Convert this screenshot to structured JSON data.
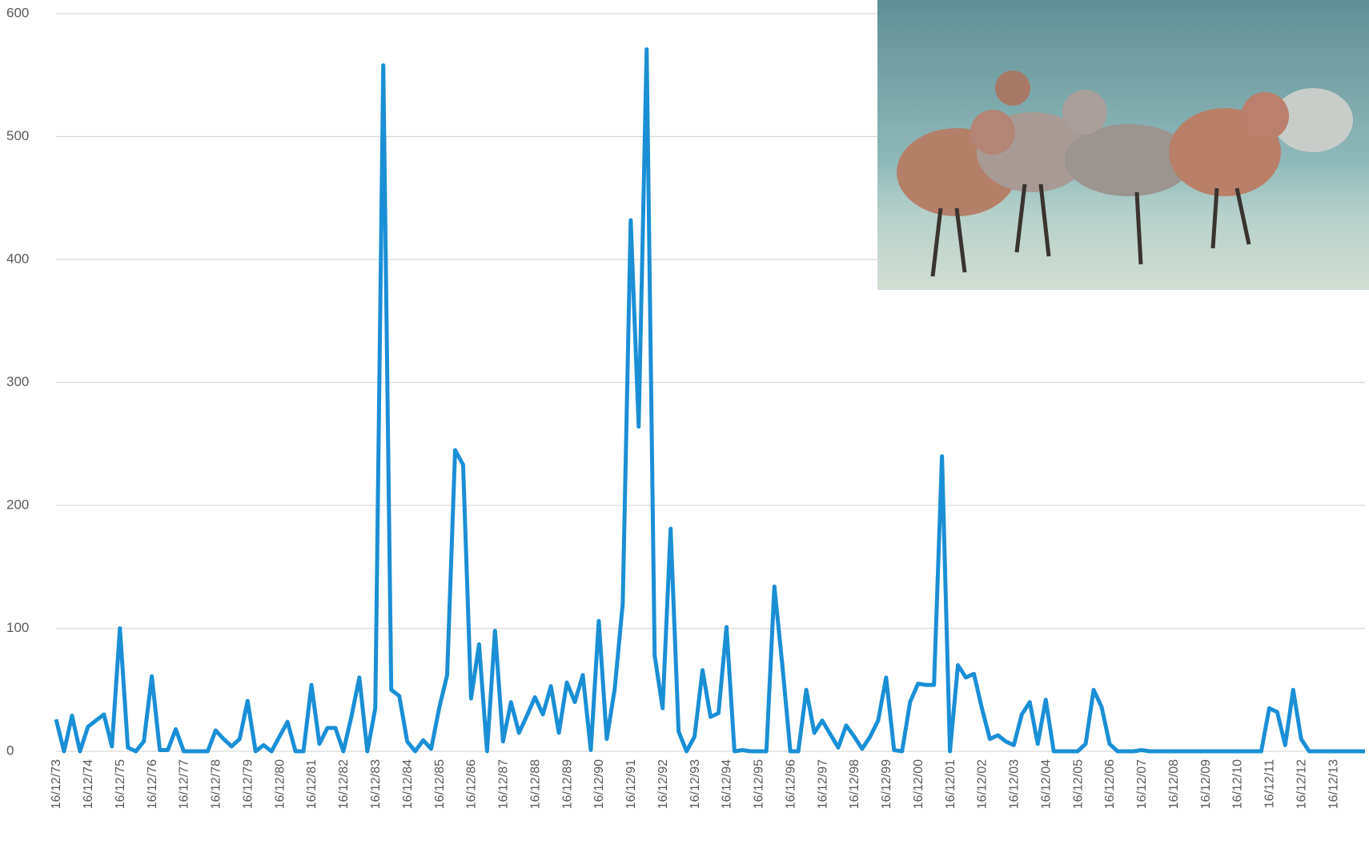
{
  "chart_data": {
    "type": "line",
    "categories": [
      "16/12/73",
      null,
      null,
      null,
      "16/12/74",
      null,
      null,
      null,
      "16/12/75",
      null,
      null,
      null,
      "16/12/76",
      null,
      null,
      null,
      "16/12/77",
      null,
      null,
      null,
      "16/12/78",
      null,
      null,
      null,
      "16/12/79",
      null,
      null,
      null,
      "16/12/80",
      null,
      null,
      null,
      "16/12/81",
      null,
      null,
      null,
      "16/12/82",
      null,
      null,
      null,
      "16/12/83",
      null,
      null,
      null,
      "16/12/84",
      null,
      null,
      null,
      "16/12/85",
      null,
      null,
      null,
      "16/12/86",
      null,
      null,
      null,
      "16/12/87",
      null,
      null,
      null,
      "16/12/88",
      null,
      null,
      null,
      "16/12/89",
      null,
      null,
      null,
      "16/12/90",
      null,
      null,
      null,
      "16/12/91",
      null,
      null,
      null,
      "16/12/92",
      null,
      null,
      null,
      "16/12/93",
      null,
      null,
      null,
      "16/12/94",
      null,
      null,
      null,
      "16/12/95",
      null,
      null,
      null,
      "16/12/96",
      null,
      null,
      null,
      "16/12/97",
      null,
      null,
      null,
      "16/12/98",
      null,
      null,
      null,
      "16/12/99",
      null,
      null,
      null,
      "16/12/00",
      null,
      null,
      null,
      "16/12/01",
      null,
      null,
      null,
      "16/12/02",
      null,
      null,
      null,
      "16/12/03",
      null,
      null,
      null,
      "16/12/04",
      null,
      null,
      null,
      "16/12/05",
      null,
      null,
      null,
      "16/12/06",
      null,
      null,
      null,
      "16/12/07",
      null,
      null,
      null,
      "16/12/08",
      null,
      null,
      null,
      "16/12/09",
      null,
      null,
      null,
      "16/12/10",
      null,
      null,
      null,
      "16/12/11",
      null,
      null,
      null,
      "16/12/12",
      null,
      null,
      null,
      "16/12/13",
      null,
      null,
      null,
      null
    ],
    "values": [
      26,
      0,
      29,
      0,
      20,
      25,
      30,
      4,
      100,
      3,
      0,
      8,
      61,
      1,
      1,
      18,
      0,
      0,
      0,
      0,
      17,
      10,
      4,
      10,
      41,
      0,
      5,
      0,
      12,
      24,
      0,
      0,
      54,
      6,
      19,
      19,
      0,
      28,
      60,
      0,
      35,
      558,
      50,
      45,
      8,
      0,
      9,
      2,
      35,
      62,
      245,
      233,
      43,
      87,
      0,
      98,
      8,
      40,
      15,
      29,
      44,
      30,
      53,
      15,
      56,
      40,
      62,
      1,
      106,
      10,
      51,
      120,
      432,
      264,
      571,
      78,
      35,
      181,
      16,
      0,
      12,
      66,
      28,
      31,
      101,
      0,
      1,
      0,
      0,
      0,
      134,
      70,
      0,
      0,
      50,
      15,
      25,
      14,
      3,
      21,
      12,
      2,
      12,
      25,
      60,
      1,
      0,
      40,
      55,
      54,
      54,
      240,
      0,
      70,
      60,
      63,
      35,
      10,
      13,
      8,
      5,
      30,
      40,
      6,
      42,
      0,
      0,
      0,
      0,
      6,
      50,
      36,
      6,
      0,
      0,
      0,
      1,
      0,
      0,
      0,
      0,
      0,
      0,
      0,
      0,
      0,
      0,
      0,
      0,
      0,
      0,
      0,
      35,
      32,
      5,
      50,
      10,
      0,
      0,
      0,
      0,
      0,
      0,
      0,
      0
    ],
    "color": "#1a8fd6",
    "ylim": [
      0,
      600
    ],
    "yticks": [
      0,
      100,
      200,
      300,
      400,
      500,
      600
    ],
    "grid": true
  }
}
